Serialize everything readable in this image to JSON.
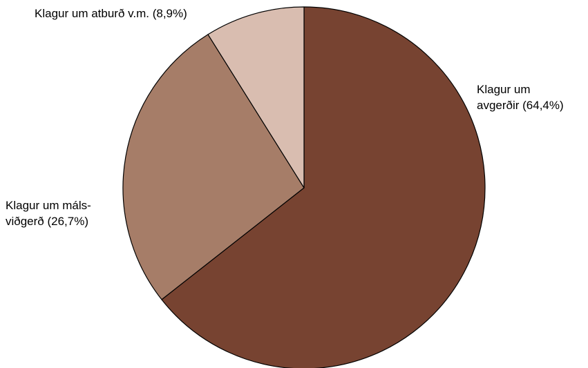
{
  "chart_data": {
    "type": "pie",
    "title": "",
    "start_angle": "12 o'clock",
    "direction": "clockwise",
    "legend": "none",
    "slices": [
      {
        "label_lines": [
          "Klagur um",
          "avgerðir (64,4%)"
        ],
        "value": 64.4,
        "color": "#774331"
      },
      {
        "label_lines": [
          "Klagur um máls-",
          "viðgerð (26,7%)"
        ],
        "value": 26.7,
        "color": "#a67d68"
      },
      {
        "label_lines": [
          "Klagur um atburð v.m. (8,9%)"
        ],
        "value": 8.9,
        "color": "#d9bdb0"
      }
    ]
  }
}
